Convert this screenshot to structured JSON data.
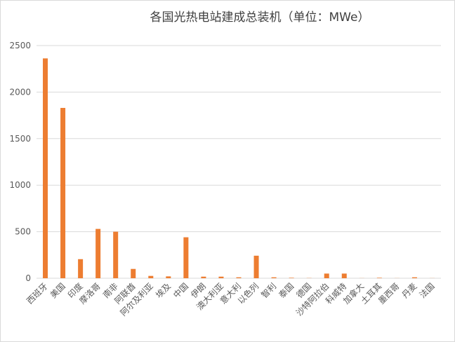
{
  "chart_data": {
    "type": "bar",
    "title": "各国光热电站建成总装机（单位：MWe）",
    "categories": [
      "西班牙",
      "美国",
      "印度",
      "摩洛哥",
      "南非",
      "阿联酋",
      "阿尔及利亚",
      "埃及",
      "中国",
      "伊朗",
      "澳大利亚",
      "意大利",
      "以色列",
      "智利",
      "泰国",
      "德国",
      "沙特阿拉伯",
      "科威特",
      "加拿大",
      "土耳其",
      "墨西哥",
      "丹麦",
      "法国"
    ],
    "values": [
      2362,
      1830,
      205,
      530,
      500,
      100,
      25,
      20,
      440,
      17,
      17,
      10,
      242,
      10,
      5,
      2,
      50,
      50,
      1,
      5,
      1,
      10,
      1
    ],
    "color": "#ed7d31",
    "ylim": [
      0,
      2500
    ],
    "yticks": [
      0,
      500,
      1000,
      1500,
      2000,
      2500
    ],
    "grid": true
  }
}
